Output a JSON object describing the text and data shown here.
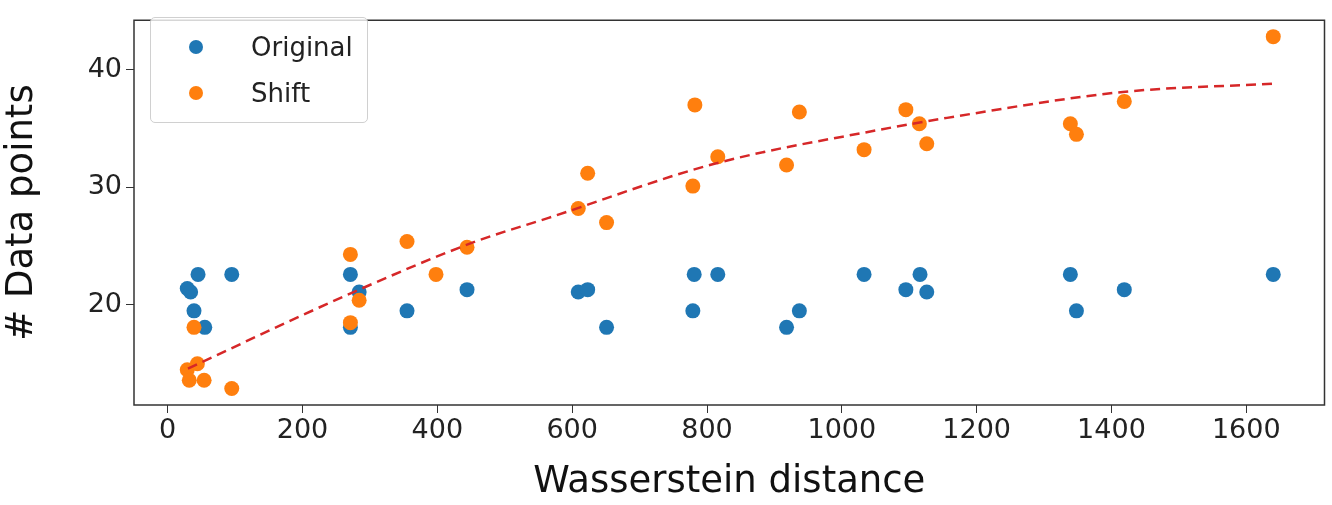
{
  "chart_data": {
    "type": "scatter",
    "xlabel": "Wasserstein distance",
    "ylabel": "# Data points",
    "xlim": [
      -50,
      1716
    ],
    "ylim": [
      11.5,
      44.2
    ],
    "xticks": [
      0,
      200,
      400,
      600,
      800,
      1000,
      1200,
      1400,
      1600
    ],
    "yticks": [
      20,
      30,
      40
    ],
    "grid": false,
    "legend": "top left",
    "marker": "circle",
    "series": [
      {
        "name": "Original",
        "color": "#1f77b4",
        "x": [
          29,
          34,
          45,
          39,
          55,
          95,
          271,
          284,
          271,
          355,
          444,
          609,
          623,
          651,
          781,
          816,
          779,
          918,
          937,
          1033,
          1095,
          1116,
          1126,
          1339,
          1348,
          1419,
          1640
        ],
        "values": [
          21.4,
          21.1,
          22.6,
          19.5,
          18.1,
          22.6,
          22.6,
          21.1,
          18.1,
          19.5,
          21.3,
          21.1,
          21.3,
          18.1,
          22.6,
          22.6,
          19.5,
          18.1,
          19.5,
          22.6,
          21.3,
          22.6,
          21.1,
          22.6,
          19.5,
          21.3,
          22.6
        ]
      },
      {
        "name": "Shift",
        "color": "#ff7f0e",
        "x": [
          39,
          29,
          44,
          32,
          54,
          95,
          271,
          271,
          284,
          355,
          398,
          444,
          623,
          609,
          651,
          782,
          779,
          816,
          918,
          937,
          1033,
          1095,
          1115,
          1126,
          1339,
          1348,
          1419,
          1640
        ],
        "values": [
          18.1,
          14.5,
          15.0,
          13.6,
          13.6,
          12.9,
          24.3,
          18.5,
          20.4,
          25.4,
          22.6,
          24.9,
          31.2,
          28.2,
          27.0,
          37.0,
          30.1,
          32.6,
          31.9,
          36.4,
          33.2,
          36.6,
          35.4,
          33.7,
          35.4,
          34.5,
          37.3,
          42.8
        ]
      },
      {
        "type": "line",
        "color": "#d62728",
        "line_style": "dashed",
        "marker": "none",
        "x": [
          30,
          280,
          457,
          565,
          811,
          1057,
          1156,
          1417,
          1640
        ],
        "values": [
          14.6,
          21.2,
          25.4,
          27.4,
          32.0,
          34.9,
          35.9,
          38.1,
          38.8
        ]
      }
    ]
  }
}
